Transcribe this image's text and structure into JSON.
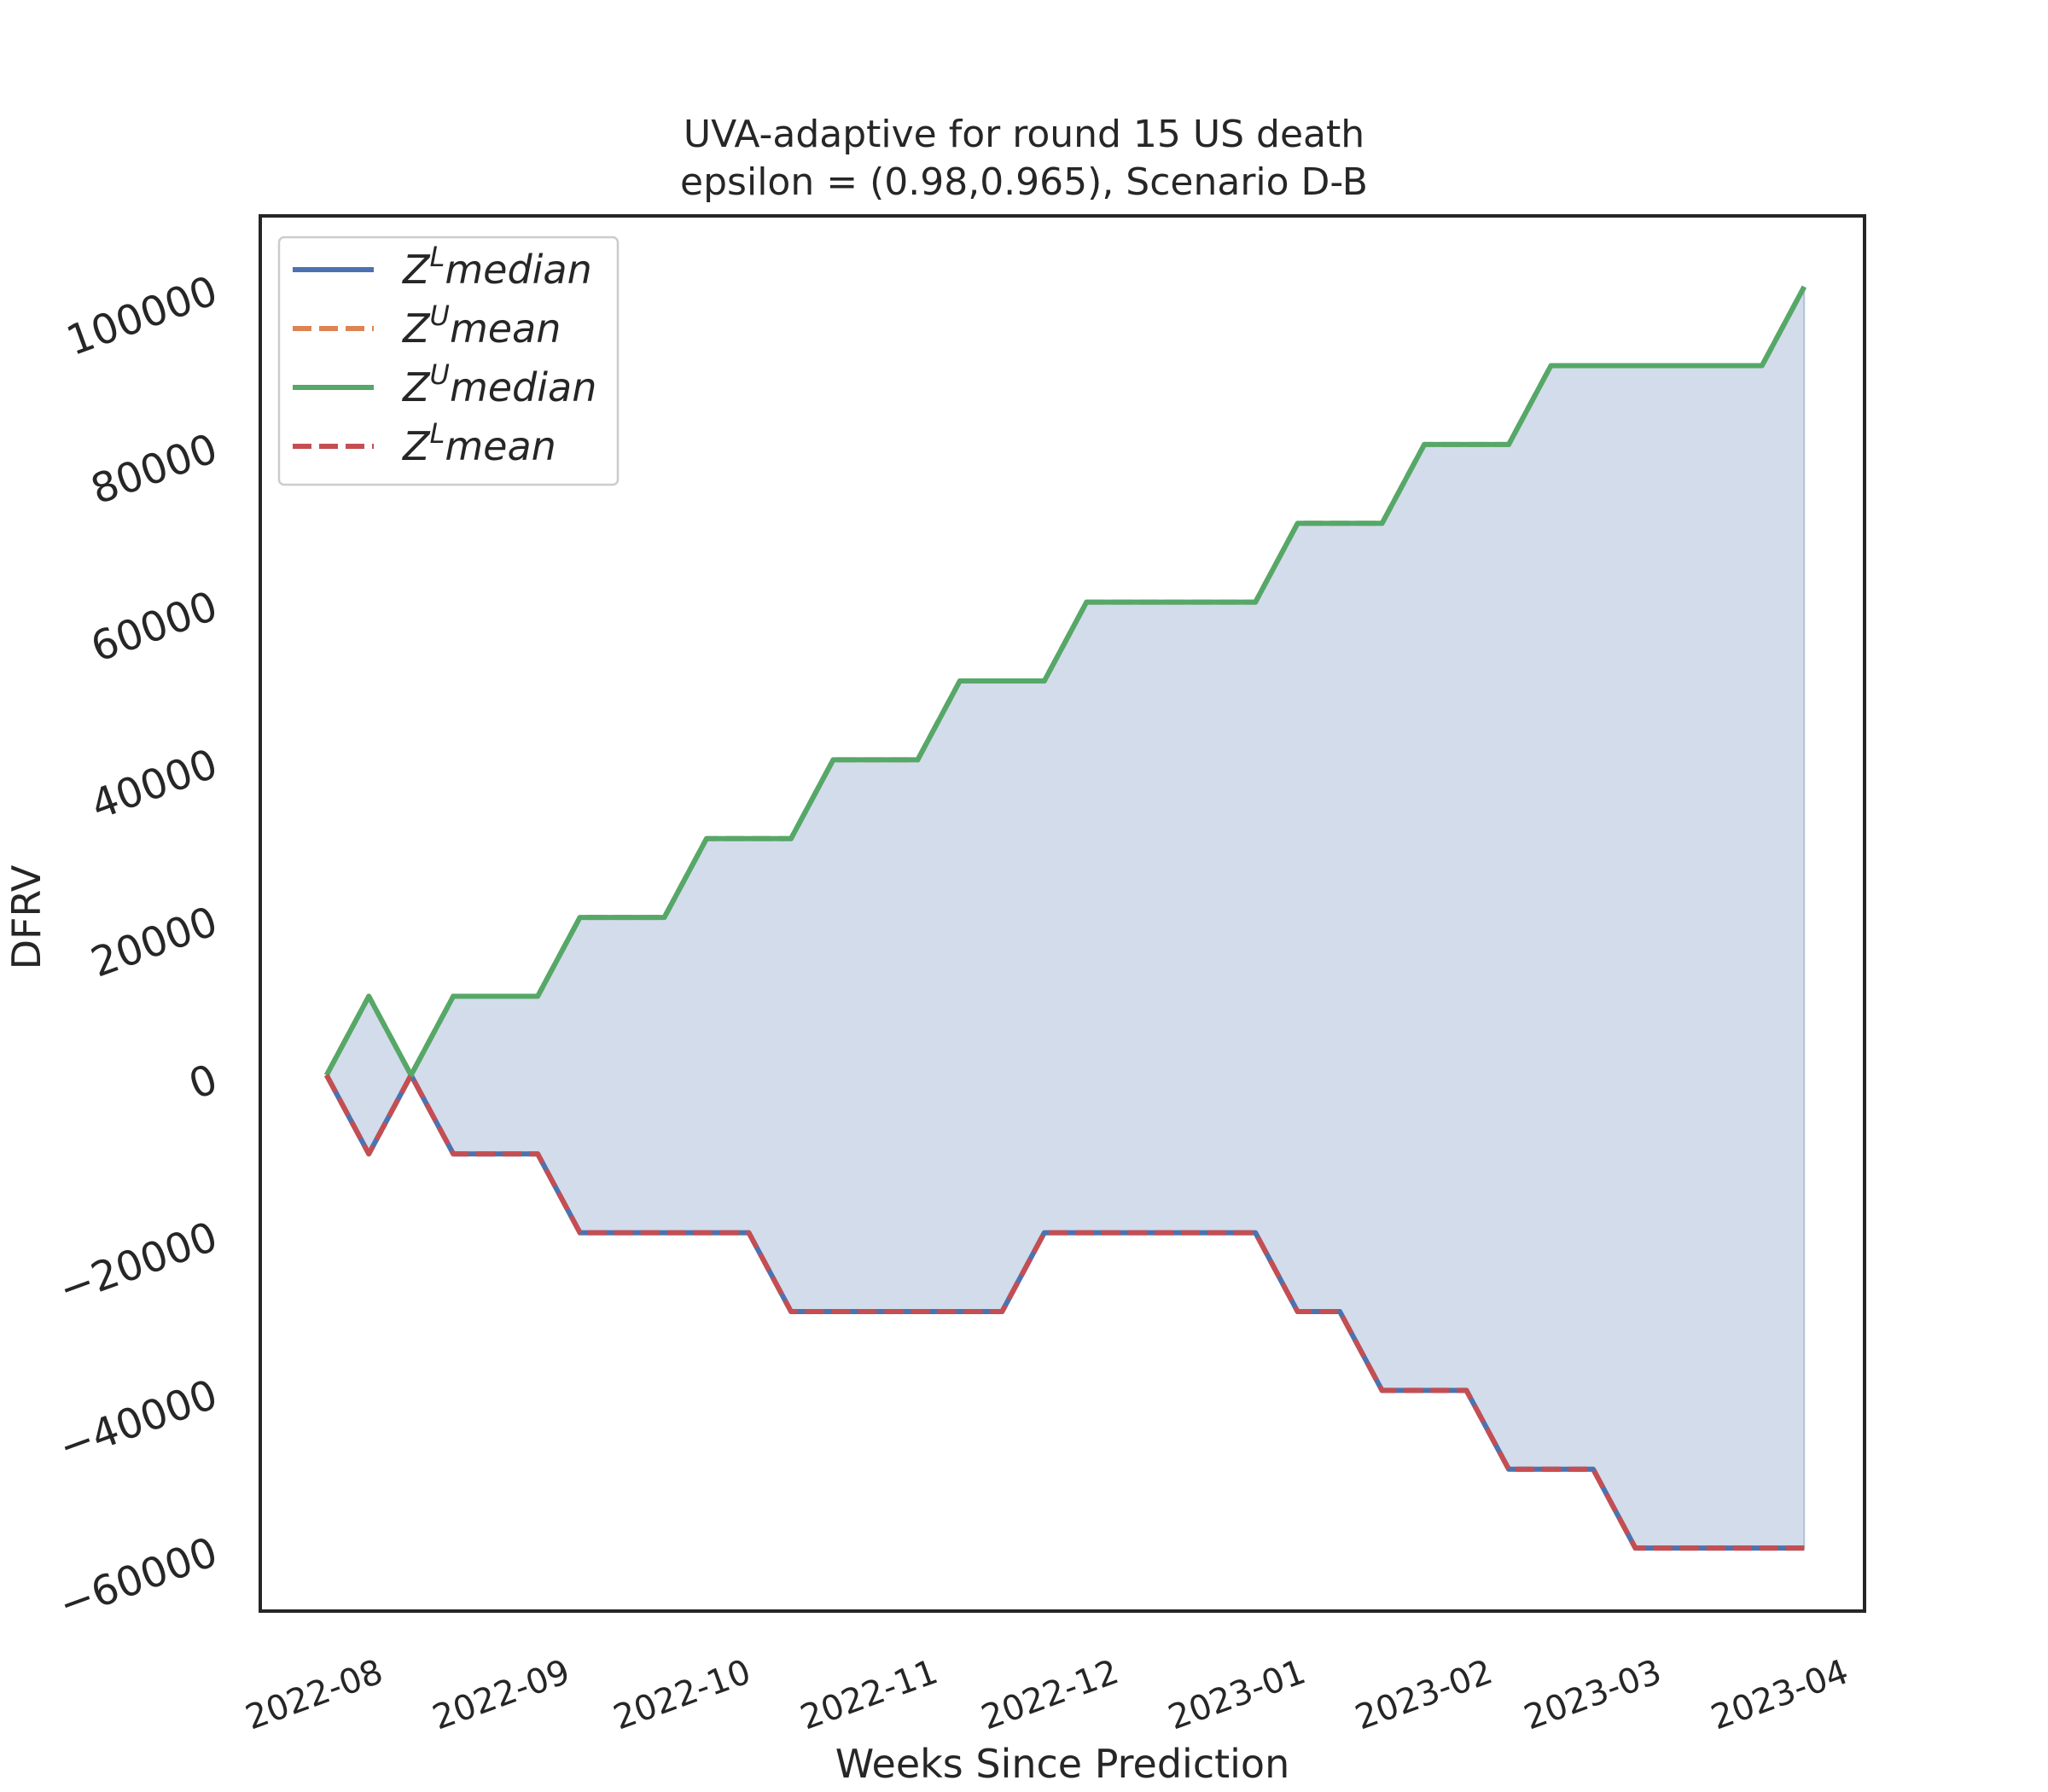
{
  "chart_data": {
    "type": "line",
    "title": "UVA-adaptive for round 15 US  death",
    "subtitle": "epsilon = (0.98,0.965), Scenario D-B",
    "xlabel": "Weeks Since Prediction",
    "ylabel": "DFRV",
    "ylim": [
      -68000,
      109000
    ],
    "xlim": [
      "2022-07-13",
      "2023-04-05"
    ],
    "x_tick_labels": [
      "2022-08",
      "2022-09",
      "2022-10",
      "2022-11",
      "2022-12",
      "2023-01",
      "2023-02",
      "2023-03",
      "2023-04"
    ],
    "x_tick_dates": [
      "2022-08-01",
      "2022-09-01",
      "2022-10-01",
      "2022-11-01",
      "2022-12-01",
      "2023-01-01",
      "2023-02-01",
      "2023-03-01",
      "2023-04-01"
    ],
    "y_ticks": [
      -60000,
      -40000,
      -20000,
      0,
      20000,
      40000,
      60000,
      80000,
      100000
    ],
    "y_tick_labels": [
      "−60000",
      "−40000",
      "−20000",
      "0",
      "20000",
      "40000",
      "60000",
      "80000",
      "100000"
    ],
    "x": [
      "2022-07-24",
      "2022-07-31",
      "2022-08-07",
      "2022-08-14",
      "2022-08-21",
      "2022-08-28",
      "2022-09-04",
      "2022-09-11",
      "2022-09-18",
      "2022-09-25",
      "2022-10-02",
      "2022-10-09",
      "2022-10-16",
      "2022-10-23",
      "2022-10-30",
      "2022-11-06",
      "2022-11-13",
      "2022-11-20",
      "2022-11-27",
      "2022-12-04",
      "2022-12-11",
      "2022-12-18",
      "2022-12-25",
      "2023-01-01",
      "2023-01-08",
      "2023-01-15",
      "2023-01-22",
      "2023-01-29",
      "2023-02-05",
      "2023-02-12",
      "2023-02-19",
      "2023-02-26",
      "2023-03-05",
      "2023-03-12",
      "2023-03-19",
      "2023-03-26"
    ],
    "series": [
      {
        "name": "Z^L median",
        "legend_label": "Z",
        "legend_sup": "L",
        "legend_word": "median",
        "color": "#4c72b0",
        "style": "solid",
        "values": [
          0,
          -10000,
          0,
          -10000,
          -10000,
          -10000,
          -20000,
          -20000,
          -20000,
          -20000,
          -20000,
          -30000,
          -30000,
          -30000,
          -30000,
          -30000,
          -30000,
          -20000,
          -20000,
          -20000,
          -20000,
          -20000,
          -20000,
          -30000,
          -30000,
          -40000,
          -40000,
          -40000,
          -50000,
          -50000,
          -50000,
          -60000,
          -60000,
          -60000,
          -60000,
          -60000
        ]
      },
      {
        "name": "Z^U mean",
        "legend_label": "Z",
        "legend_sup": "U",
        "legend_word": "mean",
        "color": "#dd8452",
        "style": "dashed",
        "values": [
          0,
          10000,
          0,
          10000,
          10000,
          10000,
          20000,
          20000,
          20000,
          30000,
          30000,
          30000,
          40000,
          40000,
          40000,
          50000,
          50000,
          50000,
          60000,
          60000,
          60000,
          60000,
          60000,
          70000,
          70000,
          70000,
          80000,
          80000,
          80000,
          90000,
          90000,
          90000,
          90000,
          90000,
          90000,
          100000
        ]
      },
      {
        "name": "Z^U median",
        "legend_label": "Z",
        "legend_sup": "U",
        "legend_word": "median",
        "color": "#55a868",
        "style": "solid",
        "values": [
          0,
          10000,
          0,
          10000,
          10000,
          10000,
          20000,
          20000,
          20000,
          30000,
          30000,
          30000,
          40000,
          40000,
          40000,
          50000,
          50000,
          50000,
          60000,
          60000,
          60000,
          60000,
          60000,
          70000,
          70000,
          70000,
          80000,
          80000,
          80000,
          90000,
          90000,
          90000,
          90000,
          90000,
          90000,
          100000
        ]
      },
      {
        "name": "Z^L mean",
        "legend_label": "Z",
        "legend_sup": "L",
        "legend_word": "mean",
        "color": "#c44e52",
        "style": "dashed",
        "values": [
          0,
          -10000,
          0,
          -10000,
          -10000,
          -10000,
          -20000,
          -20000,
          -20000,
          -20000,
          -20000,
          -30000,
          -30000,
          -30000,
          -30000,
          -30000,
          -30000,
          -20000,
          -20000,
          -20000,
          -20000,
          -20000,
          -20000,
          -30000,
          -30000,
          -40000,
          -40000,
          -40000,
          -50000,
          -50000,
          -50000,
          -60000,
          -60000,
          -60000,
          -60000,
          -60000
        ]
      }
    ],
    "fill_between": {
      "lower": "Z^L median",
      "upper": "Z^U median",
      "color": "#4c72b0",
      "alpha": 0.25
    },
    "legend_location": "upper-left",
    "grid": false
  }
}
